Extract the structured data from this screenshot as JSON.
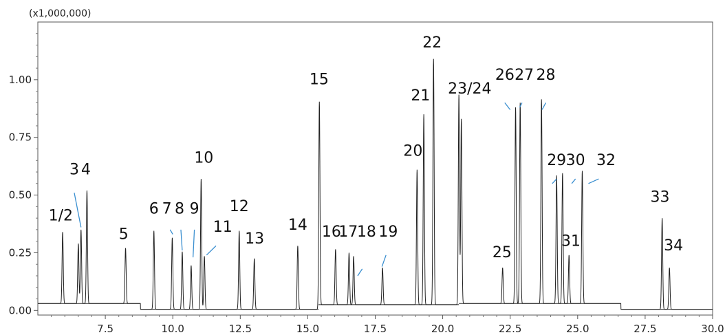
{
  "chart_data": {
    "type": "line",
    "title": "",
    "xlabel": "",
    "ylabel": "",
    "y_scale_label": "(x1,000,000)",
    "xlim": [
      5.0,
      30.0
    ],
    "ylim": [
      -0.02,
      1.25
    ],
    "x_ticks": [
      7.5,
      10.0,
      12.5,
      15.0,
      17.5,
      20.0,
      22.5,
      25.0,
      27.5,
      30.0
    ],
    "x_tick_labels": [
      "7.5",
      "10.0",
      "12.5",
      "15.0",
      "17.5",
      "20.0",
      "22.5",
      "25.0",
      "27.5",
      "30.0"
    ],
    "y_ticks": [
      0.0,
      0.25,
      0.5,
      0.75,
      1.0
    ],
    "y_tick_labels": [
      "0.00",
      "0.25",
      "0.50",
      "0.75",
      "1.00"
    ],
    "line_color": "#222222",
    "leader_color": "#3a8fd0",
    "baseline_segments": [
      {
        "x0": 5.0,
        "x1": 8.8,
        "y": 0.03
      },
      {
        "x0": 8.8,
        "x1": 15.4,
        "y": 0.005
      },
      {
        "x0": 15.4,
        "x1": 20.6,
        "y": 0.025
      },
      {
        "x0": 20.6,
        "x1": 26.6,
        "y": 0.03
      },
      {
        "x0": 26.6,
        "x1": 30.0,
        "y": 0.005
      }
    ],
    "peaks": [
      {
        "x": 5.92,
        "h": 0.31
      },
      {
        "x": 6.5,
        "h": 0.26
      },
      {
        "x": 6.6,
        "h": 0.32
      },
      {
        "x": 6.82,
        "h": 0.49
      },
      {
        "x": 8.25,
        "h": 0.24
      },
      {
        "x": 9.3,
        "h": 0.34
      },
      {
        "x": 9.98,
        "h": 0.31
      },
      {
        "x": 10.35,
        "h": 0.25
      },
      {
        "x": 10.68,
        "h": 0.19
      },
      {
        "x": 11.05,
        "h": 0.565
      },
      {
        "x": 11.17,
        "h": 0.23
      },
      {
        "x": 12.46,
        "h": 0.34
      },
      {
        "x": 13.02,
        "h": 0.22
      },
      {
        "x": 14.63,
        "h": 0.275
      },
      {
        "x": 15.43,
        "h": 0.88
      },
      {
        "x": 16.03,
        "h": 0.24
      },
      {
        "x": 16.53,
        "h": 0.225
      },
      {
        "x": 16.7,
        "h": 0.21
      },
      {
        "x": 17.77,
        "h": 0.16
      },
      {
        "x": 19.05,
        "h": 0.585
      },
      {
        "x": 19.3,
        "h": 0.825
      },
      {
        "x": 19.66,
        "h": 1.065
      },
      {
        "x": 20.6,
        "h": 0.91
      },
      {
        "x": 20.69,
        "h": 0.8
      },
      {
        "x": 22.22,
        "h": 0.155
      },
      {
        "x": 22.7,
        "h": 0.85
      },
      {
        "x": 22.87,
        "h": 0.87
      },
      {
        "x": 23.66,
        "h": 0.885
      },
      {
        "x": 24.22,
        "h": 0.555
      },
      {
        "x": 24.44,
        "h": 0.565
      },
      {
        "x": 24.68,
        "h": 0.21
      },
      {
        "x": 25.17,
        "h": 0.575
      },
      {
        "x": 28.13,
        "h": 0.395
      },
      {
        "x": 28.4,
        "h": 0.18
      }
    ],
    "annotations": [
      {
        "text": "1/2",
        "x": 5.85,
        "y": 0.39
      },
      {
        "text": "3",
        "x": 6.35,
        "y": 0.59
      },
      {
        "text": "4",
        "x": 6.78,
        "y": 0.59
      },
      {
        "text": "5",
        "x": 8.18,
        "y": 0.31
      },
      {
        "text": "6",
        "x": 9.3,
        "y": 0.42
      },
      {
        "text": "7",
        "x": 9.78,
        "y": 0.42
      },
      {
        "text": "8",
        "x": 10.25,
        "y": 0.42
      },
      {
        "text": "9",
        "x": 10.8,
        "y": 0.42
      },
      {
        "text": "10",
        "x": 11.15,
        "y": 0.64
      },
      {
        "text": "11",
        "x": 11.85,
        "y": 0.34
      },
      {
        "text": "12",
        "x": 12.46,
        "y": 0.43
      },
      {
        "text": "13",
        "x": 13.03,
        "y": 0.29
      },
      {
        "text": "14",
        "x": 14.63,
        "y": 0.35
      },
      {
        "text": "15",
        "x": 15.42,
        "y": 0.98
      },
      {
        "text": "16",
        "x": 15.88,
        "y": 0.32
      },
      {
        "text": "17",
        "x": 16.5,
        "y": 0.32
      },
      {
        "text": "18",
        "x": 17.18,
        "y": 0.32
      },
      {
        "text": "19",
        "x": 17.98,
        "y": 0.32
      },
      {
        "text": "20",
        "x": 18.9,
        "y": 0.67
      },
      {
        "text": "21",
        "x": 19.18,
        "y": 0.91
      },
      {
        "text": "22",
        "x": 19.61,
        "y": 1.14
      },
      {
        "text": "23/24",
        "x": 21.0,
        "y": 0.94
      },
      {
        "text": "25",
        "x": 22.2,
        "y": 0.23
      },
      {
        "text": "26",
        "x": 22.3,
        "y": 1.0
      },
      {
        "text": "27",
        "x": 23.02,
        "y": 1.0
      },
      {
        "text": "28",
        "x": 23.82,
        "y": 1.0
      },
      {
        "text": "29",
        "x": 24.22,
        "y": 0.63
      },
      {
        "text": "30",
        "x": 24.92,
        "y": 0.63
      },
      {
        "text": "31",
        "x": 24.75,
        "y": 0.28
      },
      {
        "text": "32",
        "x": 26.05,
        "y": 0.63
      },
      {
        "text": "33",
        "x": 28.05,
        "y": 0.47
      },
      {
        "text": "34",
        "x": 28.55,
        "y": 0.26
      }
    ],
    "leader_lines": [
      {
        "x0": 6.35,
        "y0": 0.51,
        "x1": 6.6,
        "y1": 0.36
      },
      {
        "x0": 9.9,
        "y0": 0.35,
        "x1": 10.0,
        "y1": 0.33
      },
      {
        "x0": 10.3,
        "y0": 0.35,
        "x1": 10.35,
        "y1": 0.26
      },
      {
        "x0": 10.8,
        "y0": 0.35,
        "x1": 10.75,
        "y1": 0.23
      },
      {
        "x0": 11.6,
        "y0": 0.28,
        "x1": 11.25,
        "y1": 0.24
      },
      {
        "x0": 17.9,
        "y0": 0.24,
        "x1": 17.75,
        "y1": 0.19
      },
      {
        "x0": 17.02,
        "y0": 0.18,
        "x1": 16.85,
        "y1": 0.15
      },
      {
        "x0": 22.3,
        "y0": 0.9,
        "x1": 22.5,
        "y1": 0.87
      },
      {
        "x0": 22.94,
        "y0": 0.9,
        "x1": 22.85,
        "y1": 0.88
      },
      {
        "x0": 23.82,
        "y0": 0.9,
        "x1": 23.68,
        "y1": 0.87
      },
      {
        "x0": 24.22,
        "y0": 0.57,
        "x1": 24.06,
        "y1": 0.55
      },
      {
        "x0": 24.92,
        "y0": 0.57,
        "x1": 24.78,
        "y1": 0.55
      },
      {
        "x0": 25.78,
        "y0": 0.57,
        "x1": 25.4,
        "y1": 0.55
      }
    ],
    "grid": false
  }
}
